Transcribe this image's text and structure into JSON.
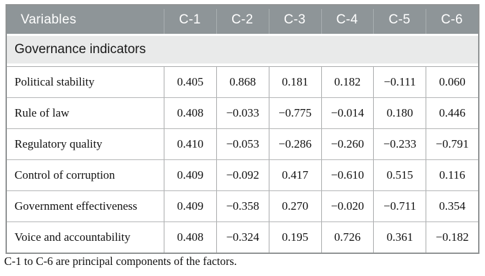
{
  "colors": {
    "header-bg": "#8e9598",
    "header-text": "#ffffff",
    "header-separator": "#a9afb1",
    "section-bg": "#e9eaea",
    "outer-border": "#909394",
    "grid-border": "#a9abac",
    "row-border": "#b3b5b6",
    "text-dark": "#1a1a1a"
  },
  "table": {
    "header": {
      "variables_label": "Variables",
      "components": [
        "C-1",
        "C-2",
        "C-3",
        "C-4",
        "C-5",
        "C-6"
      ]
    },
    "section_title": "Governance indicators",
    "rows": [
      {
        "label": "Political stability",
        "values": [
          "0.405",
          "0.868",
          "0.181",
          "0.182",
          "−0.111",
          "0.060"
        ]
      },
      {
        "label": "Rule of law",
        "values": [
          "0.408",
          "−0.033",
          "−0.775",
          "−0.014",
          "0.180",
          "0.446"
        ]
      },
      {
        "label": "Regulatory quality",
        "values": [
          "0.410",
          "−0.053",
          "−0.286",
          "−0.260",
          "−0.233",
          "−0.791"
        ]
      },
      {
        "label": "Control of corruption",
        "values": [
          "0.409",
          "−0.092",
          "0.417",
          "−0.610",
          "0.515",
          "0.116"
        ]
      },
      {
        "label": "Government effectiveness",
        "values": [
          "0.409",
          "−0.358",
          "0.270",
          "−0.020",
          "−0.711",
          "0.354"
        ]
      },
      {
        "label": "Voice and accountability",
        "values": [
          "0.408",
          "−0.324",
          "0.195",
          "0.726",
          "0.361",
          "−0.182"
        ]
      }
    ],
    "footnote": "C-1 to C-6 are principal components of the factors."
  }
}
